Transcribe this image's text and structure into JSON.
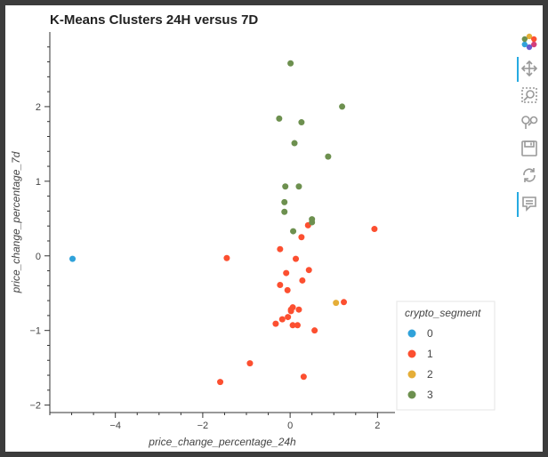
{
  "chart_data": {
    "type": "scatter",
    "title": "K-Means Clusters 24H versus 7D",
    "xlabel": "price_change_percentage_24h",
    "ylabel": "price_change_percentage_7d",
    "xlim": [
      -5.5,
      2.4
    ],
    "ylim": [
      -2.1,
      3.0
    ],
    "x_ticks": [
      -4,
      -2,
      0,
      2
    ],
    "y_ticks": [
      -2,
      -1,
      0,
      1,
      2
    ],
    "grid": false,
    "legend": {
      "title": "crypto_segment",
      "placement": "right-bottom",
      "entries": [
        "0",
        "1",
        "2",
        "3"
      ]
    },
    "series": [
      {
        "name": "0",
        "color": "#30a2da",
        "points": [
          [
            -4.98,
            -0.04
          ]
        ]
      },
      {
        "name": "1",
        "color": "#fc4f30",
        "points": [
          [
            -1.45,
            -0.03
          ],
          [
            -1.6,
            -1.69
          ],
          [
            -0.92,
            -1.44
          ],
          [
            0.31,
            -1.62
          ],
          [
            0.56,
            -1.0
          ],
          [
            -0.33,
            -0.91
          ],
          [
            -0.18,
            -0.85
          ],
          [
            -0.05,
            -0.82
          ],
          [
            0.06,
            -0.93
          ],
          [
            0.17,
            -0.93
          ],
          [
            0.02,
            -0.72
          ],
          [
            0.06,
            -0.69
          ],
          [
            0.2,
            -0.72
          ],
          [
            0.02,
            -0.74
          ],
          [
            -0.06,
            -0.46
          ],
          [
            -0.23,
            -0.39
          ],
          [
            0.28,
            -0.33
          ],
          [
            -0.09,
            -0.23
          ],
          [
            0.43,
            -0.19
          ],
          [
            0.13,
            -0.04
          ],
          [
            -0.23,
            0.09
          ],
          [
            0.26,
            0.25
          ],
          [
            0.41,
            0.41
          ],
          [
            1.23,
            -0.62
          ],
          [
            1.93,
            0.36
          ]
        ]
      },
      {
        "name": "2",
        "color": "#e5ae38",
        "points": [
          [
            1.05,
            -0.63
          ]
        ]
      },
      {
        "name": "3",
        "color": "#6d904f",
        "points": [
          [
            0.01,
            2.58
          ],
          [
            -0.25,
            1.84
          ],
          [
            0.26,
            1.79
          ],
          [
            1.19,
            2.0
          ],
          [
            0.1,
            1.51
          ],
          [
            0.87,
            1.33
          ],
          [
            -0.11,
            0.93
          ],
          [
            0.2,
            0.93
          ],
          [
            -0.13,
            0.72
          ],
          [
            -0.13,
            0.59
          ],
          [
            0.5,
            0.45
          ],
          [
            0.5,
            0.49
          ],
          [
            0.07,
            0.33
          ]
        ]
      }
    ]
  },
  "toolbar": {
    "items": [
      "bokeh-logo-icon",
      "pan-icon",
      "box-zoom-icon",
      "wheel-zoom-icon",
      "save-icon",
      "reset-icon",
      "hover-icon"
    ]
  }
}
